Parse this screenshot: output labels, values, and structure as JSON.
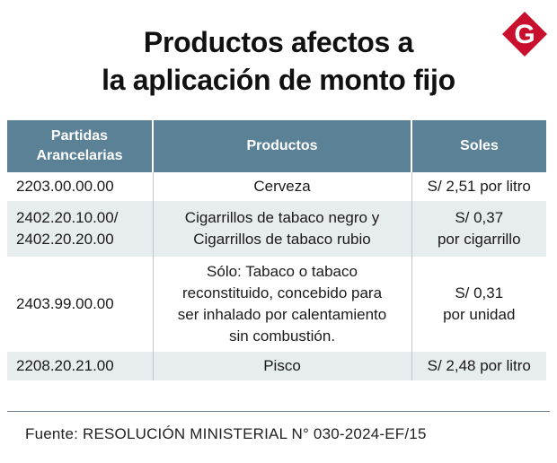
{
  "title": {
    "line1": "Productos afectos a",
    "line2": "la aplicación de monto fijo"
  },
  "logo": {
    "letter": "G",
    "color": "#c8102e"
  },
  "table": {
    "headers": {
      "col1_line1": "Partidas",
      "col1_line2": "Arancelarias",
      "col2": "Productos",
      "col3": "Soles"
    },
    "rows": [
      {
        "code_lines": [
          "2203.00.00.00"
        ],
        "product_lines": [
          "Cerveza"
        ],
        "soles_lines": [
          "S/ 2,51 por litro"
        ]
      },
      {
        "code_lines": [
          "2402.20.10.00/",
          "2402.20.20.00"
        ],
        "product_lines": [
          "Cigarrillos de tabaco negro y",
          "Cigarrillos de tabaco rubio"
        ],
        "soles_lines": [
          "S/ 0,37",
          "por cigarrillo"
        ]
      },
      {
        "code_lines": [
          "2403.99.00.00"
        ],
        "product_lines": [
          "Sólo: Tabaco o tabaco",
          "reconstituido, concebido para",
          "ser inhalado por calentamiento",
          "sin combustión."
        ],
        "soles_lines": [
          "S/ 0,31",
          "por unidad"
        ]
      },
      {
        "code_lines": [
          "2208.20.21.00"
        ],
        "product_lines": [
          "Pisco"
        ],
        "soles_lines": [
          "S/ 2,48 por litro"
        ]
      }
    ]
  },
  "source": "Fuente: RESOLUCIÓN MINISTERIAL N° 030-2024-EF/15"
}
